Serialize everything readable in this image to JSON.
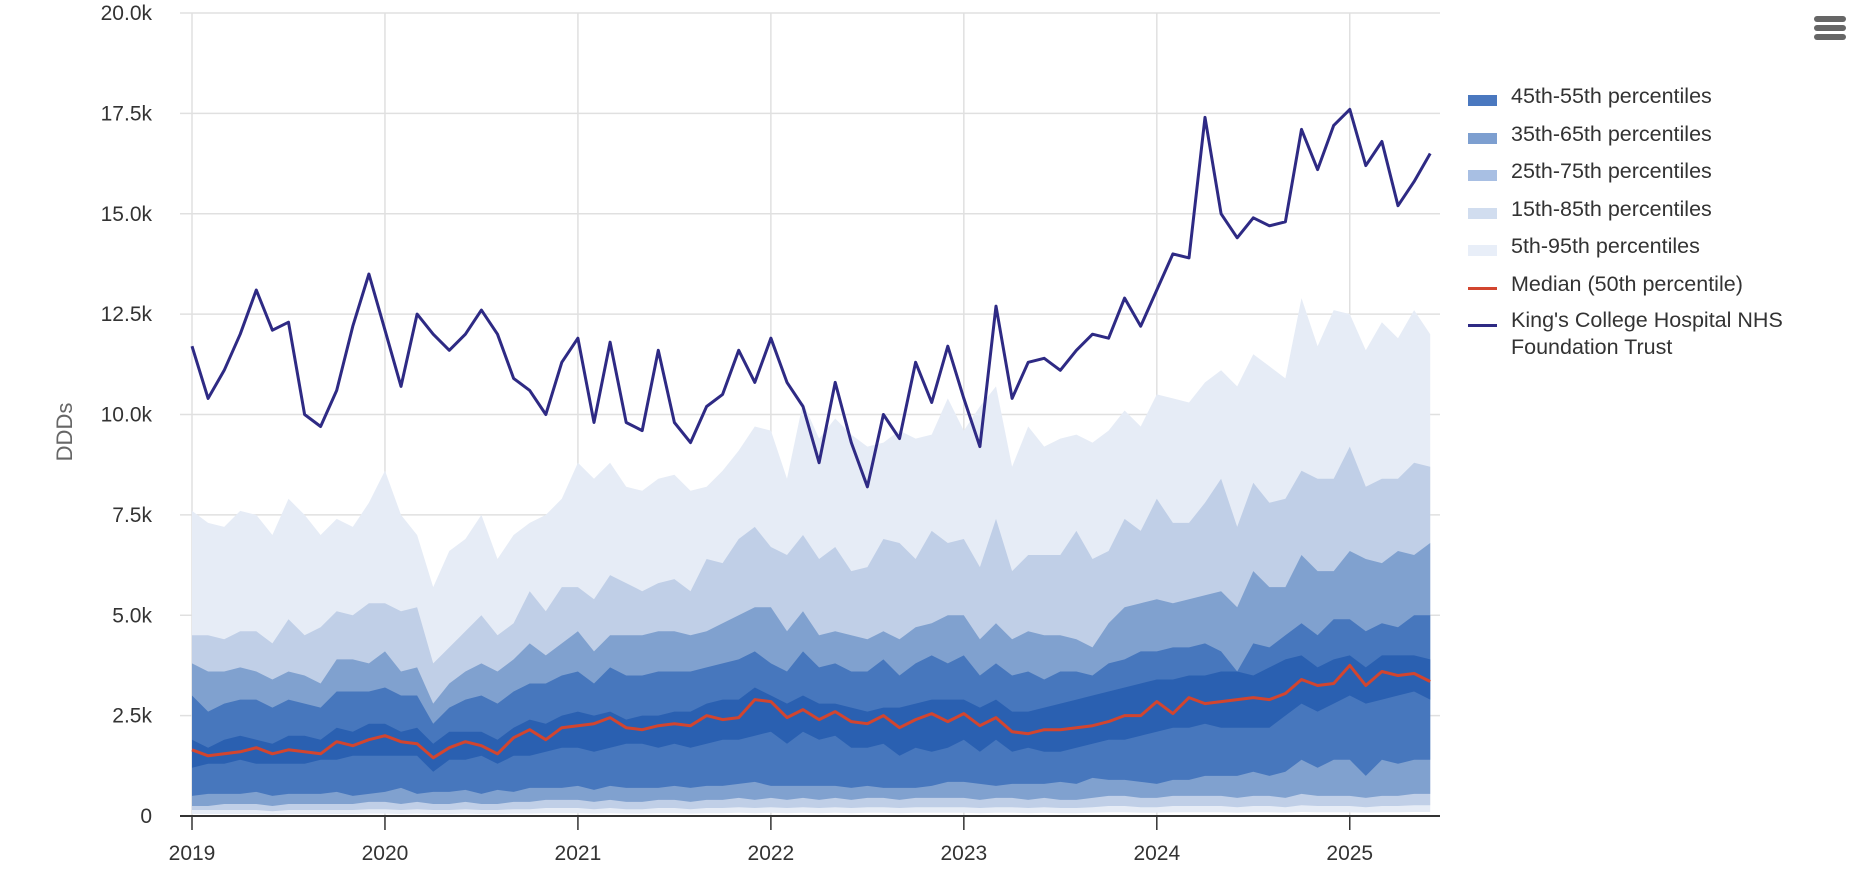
{
  "menu": {
    "icon": "hamburger-menu-icon"
  },
  "chart_data": {
    "type": "area",
    "title": "",
    "xlabel": "",
    "ylabel": "DDDs",
    "ylim": [
      0,
      20000
    ],
    "yticks": [
      0,
      2500,
      5000,
      7500,
      10000,
      12500,
      15000,
      17500,
      20000
    ],
    "ytick_labels": [
      "0",
      "2.5k",
      "5.0k",
      "7.5k",
      "10.0k",
      "12.5k",
      "15.0k",
      "17.5k",
      "20.0k"
    ],
    "xlim": [
      "2019-01",
      "2025-06"
    ],
    "xtick_labels": [
      "2019",
      "2020",
      "2021",
      "2022",
      "2023",
      "2024",
      "2025"
    ],
    "x_start": "2019-01",
    "x_frequency": "monthly",
    "grid": true,
    "legend_position": "right",
    "colors": {
      "band_45_55": "#2a60b1",
      "band_35_65": "#4777bd",
      "band_25_75": "#80a1cf",
      "band_15_85": "#c0cfe7",
      "band_5_95": "#e6ecf6",
      "median": "#d2452f",
      "trust": "#2e2a84",
      "legend_45_55": "#4a78bf",
      "legend_35_65": "#7d9fd0",
      "legend_25_75": "#a8bfe3",
      "legend_15_85": "#d1ddef",
      "legend_5_95": "#e8eef8"
    },
    "legend": [
      {
        "key": "band_45_55",
        "label": "45th-55th percentiles",
        "kind": "area"
      },
      {
        "key": "band_35_65",
        "label": "35th-65th percentiles",
        "kind": "area"
      },
      {
        "key": "band_25_75",
        "label": "25th-75th percentiles",
        "kind": "area"
      },
      {
        "key": "band_15_85",
        "label": "15th-85th percentiles",
        "kind": "area"
      },
      {
        "key": "band_5_95",
        "label": "5th-95th percentiles",
        "kind": "area"
      },
      {
        "key": "median",
        "label": "Median (50th percentile)",
        "kind": "line"
      },
      {
        "key": "trust",
        "label": "King's College Hospital NHS Foundation Trust",
        "kind": "line"
      }
    ],
    "percentiles": {
      "p95": [
        7600,
        7300,
        7200,
        7600,
        7500,
        7000,
        7900,
        7500,
        7000,
        7400,
        7200,
        7800,
        8600,
        7500,
        7000,
        5700,
        6600,
        6900,
        7500,
        6400,
        7000,
        7300,
        7500,
        7900,
        8800,
        8400,
        8800,
        8200,
        8100,
        8400,
        8500,
        8100,
        8200,
        8600,
        9100,
        9700,
        9600,
        8400,
        10300,
        9400,
        9900,
        9500,
        9200,
        9300,
        9600,
        9400,
        9500,
        10400,
        9600,
        10200,
        10700,
        8700,
        9700,
        9200,
        9400,
        9500,
        9300,
        9600,
        10100,
        9700,
        10500,
        10400,
        10300,
        10800,
        11100,
        10700,
        11500,
        11200,
        10900,
        12900,
        11700,
        12600,
        12500,
        11600,
        12300,
        11900,
        12600,
        12000
      ],
      "p85": [
        4500,
        4500,
        4400,
        4600,
        4600,
        4300,
        4900,
        4500,
        4700,
        5100,
        5000,
        5300,
        5300,
        5100,
        5200,
        3800,
        4200,
        4600,
        5000,
        4500,
        4800,
        5600,
        5100,
        5700,
        5700,
        5400,
        6000,
        5800,
        5600,
        5800,
        5900,
        5600,
        6400,
        6300,
        6900,
        7200,
        6700,
        6500,
        7000,
        6400,
        6700,
        6100,
        6200,
        6900,
        6800,
        6400,
        7100,
        6800,
        6900,
        6200,
        7400,
        6100,
        6500,
        6500,
        6500,
        7100,
        6400,
        6600,
        7400,
        7100,
        7900,
        7300,
        7300,
        7800,
        8400,
        7200,
        8300,
        7800,
        7900,
        8600,
        8400,
        8400,
        9200,
        8200,
        8400,
        8400,
        8800,
        8700
      ],
      "p75": [
        3800,
        3600,
        3600,
        3700,
        3600,
        3400,
        3600,
        3500,
        3300,
        3900,
        3900,
        3800,
        4100,
        3600,
        3700,
        2800,
        3300,
        3600,
        3800,
        3600,
        3900,
        4300,
        4000,
        4300,
        4600,
        4100,
        4500,
        4500,
        4500,
        4600,
        4600,
        4500,
        4600,
        4800,
        5000,
        5200,
        5200,
        4600,
        5100,
        4500,
        4600,
        4500,
        4400,
        4600,
        4400,
        4700,
        4800,
        5000,
        5000,
        4400,
        4800,
        4400,
        4600,
        4500,
        4500,
        4400,
        4200,
        4800,
        5200,
        5300,
        5400,
        5300,
        5400,
        5500,
        5600,
        5200,
        6100,
        5700,
        5700,
        6500,
        6100,
        6100,
        6600,
        6400,
        6300,
        6600,
        6500,
        6800
      ],
      "p65": [
        3000,
        2600,
        2800,
        2900,
        2900,
        2700,
        2900,
        2800,
        2700,
        3100,
        3100,
        3100,
        3200,
        3000,
        3000,
        2300,
        2700,
        2900,
        3000,
        2800,
        3100,
        3300,
        3300,
        3500,
        3600,
        3300,
        3700,
        3500,
        3500,
        3600,
        3600,
        3600,
        3700,
        3800,
        3900,
        4100,
        3800,
        3600,
        4100,
        3700,
        3800,
        3600,
        3600,
        3900,
        3500,
        3800,
        4000,
        3800,
        4000,
        3500,
        3800,
        3500,
        3600,
        3400,
        3600,
        3600,
        3500,
        3800,
        3900,
        4100,
        4100,
        4200,
        4200,
        4300,
        4100,
        3600,
        4300,
        4200,
        4500,
        4800,
        4500,
        4900,
        4900,
        4600,
        4800,
        4700,
        5000,
        5000
      ],
      "p55": [
        1900,
        1700,
        1900,
        2000,
        1900,
        1800,
        2000,
        2000,
        1900,
        2200,
        2100,
        2300,
        2300,
        2100,
        2200,
        1800,
        2100,
        2100,
        2100,
        1900,
        2200,
        2400,
        2300,
        2500,
        2600,
        2500,
        2600,
        2400,
        2500,
        2500,
        2600,
        2600,
        2800,
        2900,
        2900,
        3200,
        3000,
        2800,
        3000,
        2800,
        2800,
        2700,
        2600,
        2700,
        2700,
        2800,
        2900,
        2900,
        2900,
        2700,
        2900,
        2600,
        2600,
        2700,
        2800,
        2900,
        3000,
        3100,
        3200,
        3300,
        3400,
        3400,
        3500,
        3500,
        3600,
        3600,
        3500,
        3700,
        3900,
        4000,
        3700,
        3900,
        4000,
        3700,
        4000,
        4000,
        4000,
        3900
      ],
      "p45": [
        1200,
        1300,
        1300,
        1400,
        1300,
        1300,
        1300,
        1300,
        1400,
        1400,
        1500,
        1500,
        1500,
        1500,
        1500,
        1100,
        1400,
        1400,
        1500,
        1300,
        1500,
        1500,
        1600,
        1700,
        1700,
        1600,
        1700,
        1800,
        1800,
        1700,
        1800,
        1700,
        1800,
        1900,
        1900,
        2000,
        2100,
        1800,
        2100,
        1900,
        2000,
        1700,
        1700,
        1800,
        1500,
        1700,
        1600,
        1700,
        1900,
        1600,
        1900,
        1600,
        1700,
        1600,
        1600,
        1700,
        1800,
        1900,
        1900,
        2000,
        2100,
        2200,
        2200,
        2300,
        2200,
        2200,
        2200,
        2200,
        2500,
        2800,
        2600,
        2800,
        3000,
        2800,
        2900,
        3000,
        3100,
        2900
      ],
      "p35": [
        500,
        550,
        550,
        550,
        600,
        500,
        550,
        550,
        550,
        600,
        500,
        550,
        600,
        700,
        550,
        600,
        600,
        650,
        550,
        650,
        600,
        700,
        700,
        700,
        750,
        650,
        750,
        700,
        700,
        700,
        750,
        700,
        750,
        750,
        800,
        850,
        750,
        750,
        750,
        750,
        750,
        700,
        750,
        700,
        700,
        700,
        750,
        850,
        850,
        800,
        750,
        800,
        800,
        800,
        850,
        800,
        950,
        900,
        900,
        850,
        800,
        900,
        900,
        1000,
        1000,
        1000,
        1100,
        1000,
        1100,
        1400,
        1200,
        1400,
        1400,
        1000,
        1400,
        1300,
        1400,
        1400
      ],
      "p25": [
        250,
        250,
        300,
        300,
        300,
        250,
        300,
        300,
        300,
        300,
        300,
        350,
        350,
        300,
        350,
        300,
        300,
        350,
        300,
        300,
        350,
        350,
        400,
        400,
        400,
        350,
        400,
        350,
        350,
        400,
        400,
        350,
        400,
        400,
        450,
        400,
        450,
        400,
        450,
        400,
        450,
        400,
        450,
        450,
        400,
        450,
        450,
        450,
        450,
        400,
        450,
        450,
        400,
        450,
        400,
        400,
        450,
        500,
        500,
        450,
        450,
        500,
        500,
        500,
        500,
        450,
        500,
        500,
        450,
        550,
        500,
        500,
        500,
        450,
        500,
        500,
        550,
        550
      ],
      "p15": [
        150,
        150,
        150,
        150,
        150,
        120,
        150,
        150,
        150,
        150,
        150,
        170,
        170,
        150,
        170,
        150,
        150,
        170,
        150,
        150,
        170,
        170,
        200,
        200,
        200,
        170,
        200,
        170,
        170,
        200,
        200,
        170,
        200,
        200,
        220,
        200,
        220,
        200,
        220,
        200,
        220,
        200,
        220,
        220,
        200,
        220,
        220,
        220,
        220,
        200,
        220,
        220,
        200,
        220,
        200,
        200,
        220,
        250,
        250,
        220,
        220,
        250,
        250,
        250,
        250,
        220,
        250,
        250,
        220,
        270,
        250,
        250,
        250,
        220,
        250,
        250,
        270,
        270
      ],
      "p5": [
        50,
        50,
        50,
        50,
        50,
        40,
        50,
        50,
        50,
        50,
        50,
        60,
        60,
        50,
        60,
        50,
        50,
        60,
        50,
        50,
        60,
        60,
        70,
        70,
        70,
        60,
        70,
        60,
        60,
        70,
        70,
        60,
        70,
        70,
        80,
        70,
        80,
        70,
        80,
        70,
        80,
        70,
        80,
        80,
        70,
        80,
        80,
        80,
        80,
        70,
        80,
        80,
        70,
        80,
        70,
        70,
        80,
        90,
        90,
        80,
        80,
        90,
        90,
        90,
        90,
        80,
        90,
        90,
        80,
        100,
        90,
        90,
        90,
        80,
        90,
        90,
        100,
        100
      ]
    },
    "median": [
      1650,
      1500,
      1550,
      1600,
      1700,
      1550,
      1650,
      1600,
      1550,
      1850,
      1750,
      1900,
      2000,
      1850,
      1800,
      1450,
      1700,
      1850,
      1750,
      1550,
      1950,
      2150,
      1900,
      2200,
      2250,
      2300,
      2450,
      2200,
      2150,
      2250,
      2300,
      2250,
      2500,
      2400,
      2450,
      2900,
      2850,
      2450,
      2650,
      2400,
      2600,
      2350,
      2300,
      2500,
      2200,
      2400,
      2550,
      2350,
      2550,
      2250,
      2450,
      2100,
      2050,
      2150,
      2150,
      2200,
      2250,
      2350,
      2500,
      2500,
      2850,
      2550,
      2950,
      2800,
      2850,
      2900,
      2950,
      2900,
      3050,
      3400,
      3250,
      3300,
      3750,
      3250,
      3600,
      3500,
      3550,
      3350
    ],
    "trust": [
      11700,
      10400,
      11100,
      12000,
      13100,
      12100,
      12300,
      10000,
      9700,
      10600,
      12200,
      13500,
      12100,
      10700,
      12500,
      12000,
      11600,
      12000,
      12600,
      12000,
      10900,
      10600,
      10000,
      11300,
      11900,
      9800,
      11800,
      9800,
      9600,
      11600,
      9800,
      9300,
      10200,
      10500,
      11600,
      10800,
      11900,
      10800,
      10200,
      8800,
      10800,
      9300,
      8200,
      10000,
      9400,
      11300,
      10300,
      11700,
      10400,
      9200,
      12700,
      10400,
      11300,
      11400,
      11100,
      11600,
      12000,
      11900,
      12900,
      12200,
      13100,
      14000,
      13900,
      17400,
      15000,
      14400,
      14900,
      14700,
      14800,
      17100,
      16100,
      17200,
      17600,
      16200,
      16800,
      15200,
      15800,
      16500
    ]
  }
}
